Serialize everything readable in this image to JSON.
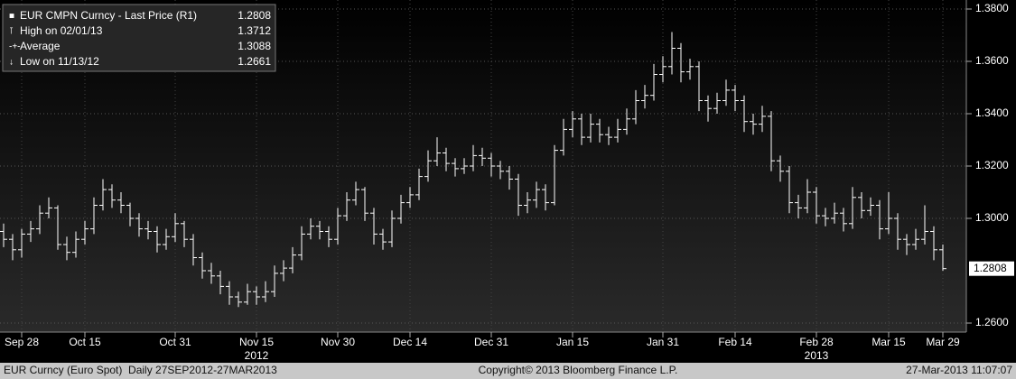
{
  "chart_data": {
    "type": "ohlc",
    "legend": [
      {
        "label": "EUR CMPN Curncy - Last Price (R1)",
        "value": 1.2808
      },
      {
        "label": "High on 02/01/13",
        "value": 1.3712
      },
      {
        "label": "Average",
        "value": 1.3088
      },
      {
        "label": "Low on 11/13/12",
        "value": 1.2661
      }
    ],
    "categories": [
      null,
      null,
      "Sep 28",
      null,
      null,
      null,
      null,
      null,
      null,
      "Oct 15",
      null,
      null,
      null,
      null,
      null,
      null,
      null,
      null,
      null,
      "Oct 31",
      null,
      null,
      null,
      null,
      null,
      null,
      null,
      null,
      "Nov 15",
      null,
      null,
      null,
      null,
      null,
      null,
      null,
      null,
      "Nov 30",
      null,
      null,
      null,
      null,
      null,
      null,
      null,
      "Dec 14",
      null,
      null,
      null,
      null,
      null,
      null,
      null,
      null,
      "Dec 31",
      null,
      null,
      null,
      null,
      null,
      null,
      null,
      null,
      "Jan 15",
      null,
      null,
      null,
      null,
      null,
      null,
      null,
      null,
      null,
      "Jan 31",
      null,
      null,
      null,
      null,
      null,
      null,
      null,
      "Feb 14",
      null,
      null,
      null,
      null,
      null,
      null,
      null,
      null,
      "Feb 28",
      null,
      null,
      null,
      null,
      null,
      null,
      null,
      "Mar 15",
      null,
      null,
      null,
      null,
      null,
      "Mar 29"
    ],
    "year_labels": [
      "2012",
      "2013"
    ],
    "ohlc": [
      [
        1.295,
        1.298,
        1.289,
        1.292
      ],
      [
        1.292,
        1.294,
        1.284,
        1.288
      ],
      [
        1.288,
        1.296,
        1.285,
        1.294
      ],
      [
        1.294,
        1.299,
        1.291,
        1.296
      ],
      [
        1.296,
        1.305,
        1.294,
        1.302
      ],
      [
        1.302,
        1.308,
        1.3,
        1.304
      ],
      [
        1.304,
        1.305,
        1.288,
        1.29
      ],
      [
        1.29,
        1.293,
        1.284,
        1.287
      ],
      [
        1.287,
        1.295,
        1.285,
        1.292
      ],
      [
        1.292,
        1.299,
        1.29,
        1.296
      ],
      [
        1.296,
        1.308,
        1.294,
        1.305
      ],
      [
        1.305,
        1.315,
        1.303,
        1.311
      ],
      [
        1.311,
        1.313,
        1.304,
        1.307
      ],
      [
        1.307,
        1.31,
        1.302,
        1.305
      ],
      [
        1.305,
        1.306,
        1.297,
        1.3
      ],
      [
        1.3,
        1.302,
        1.293,
        1.296
      ],
      [
        1.296,
        1.299,
        1.292,
        1.295
      ],
      [
        1.295,
        1.297,
        1.287,
        1.29
      ],
      [
        1.29,
        1.296,
        1.288,
        1.293
      ],
      [
        1.293,
        1.302,
        1.291,
        1.298
      ],
      [
        1.298,
        1.299,
        1.289,
        1.292
      ],
      [
        1.292,
        1.294,
        1.282,
        1.285
      ],
      [
        1.285,
        1.287,
        1.277,
        1.28
      ],
      [
        1.28,
        1.283,
        1.275,
        1.278
      ],
      [
        1.278,
        1.28,
        1.271,
        1.274
      ],
      [
        1.274,
        1.276,
        1.267,
        1.27
      ],
      [
        1.27,
        1.272,
        1.2661,
        1.268
      ],
      [
        1.268,
        1.275,
        1.267,
        1.272
      ],
      [
        1.272,
        1.274,
        1.267,
        1.27
      ],
      [
        1.27,
        1.276,
        1.268,
        1.272
      ],
      [
        1.272,
        1.282,
        1.27,
        1.279
      ],
      [
        1.279,
        1.284,
        1.276,
        1.281
      ],
      [
        1.281,
        1.289,
        1.279,
        1.286
      ],
      [
        1.286,
        1.297,
        1.284,
        1.294
      ],
      [
        1.294,
        1.3,
        1.292,
        1.297
      ],
      [
        1.297,
        1.299,
        1.292,
        1.295
      ],
      [
        1.295,
        1.297,
        1.289,
        1.292
      ],
      [
        1.292,
        1.304,
        1.29,
        1.301
      ],
      [
        1.301,
        1.31,
        1.299,
        1.307
      ],
      [
        1.307,
        1.314,
        1.305,
        1.311
      ],
      [
        1.311,
        1.312,
        1.299,
        1.302
      ],
      [
        1.302,
        1.304,
        1.29,
        1.294
      ],
      [
        1.294,
        1.296,
        1.288,
        1.291
      ],
      [
        1.291,
        1.303,
        1.289,
        1.3
      ],
      [
        1.3,
        1.309,
        1.298,
        1.306
      ],
      [
        1.306,
        1.312,
        1.304,
        1.309
      ],
      [
        1.309,
        1.319,
        1.307,
        1.316
      ],
      [
        1.316,
        1.326,
        1.314,
        1.322
      ],
      [
        1.322,
        1.331,
        1.32,
        1.325
      ],
      [
        1.325,
        1.327,
        1.318,
        1.321
      ],
      [
        1.321,
        1.323,
        1.316,
        1.319
      ],
      [
        1.319,
        1.323,
        1.317,
        1.32
      ],
      [
        1.32,
        1.328,
        1.318,
        1.324
      ],
      [
        1.324,
        1.327,
        1.32,
        1.323
      ],
      [
        1.323,
        1.325,
        1.316,
        1.32
      ],
      [
        1.32,
        1.322,
        1.315,
        1.318
      ],
      [
        1.318,
        1.32,
        1.311,
        1.315
      ],
      [
        1.315,
        1.317,
        1.301,
        1.305
      ],
      [
        1.305,
        1.31,
        1.302,
        1.307
      ],
      [
        1.307,
        1.314,
        1.304,
        1.311
      ],
      [
        1.311,
        1.313,
        1.303,
        1.306
      ],
      [
        1.306,
        1.328,
        1.305,
        1.326
      ],
      [
        1.326,
        1.338,
        1.324,
        1.334
      ],
      [
        1.334,
        1.341,
        1.331,
        1.338
      ],
      [
        1.338,
        1.34,
        1.328,
        1.331
      ],
      [
        1.331,
        1.34,
        1.329,
        1.336
      ],
      [
        1.336,
        1.338,
        1.329,
        1.332
      ],
      [
        1.332,
        1.335,
        1.328,
        1.331
      ],
      [
        1.331,
        1.338,
        1.329,
        1.334
      ],
      [
        1.334,
        1.342,
        1.332,
        1.338
      ],
      [
        1.338,
        1.349,
        1.336,
        1.345
      ],
      [
        1.345,
        1.351,
        1.342,
        1.347
      ],
      [
        1.347,
        1.359,
        1.345,
        1.355
      ],
      [
        1.355,
        1.362,
        1.352,
        1.358
      ],
      [
        1.358,
        1.3712,
        1.355,
        1.365
      ],
      [
        1.365,
        1.367,
        1.352,
        1.356
      ],
      [
        1.356,
        1.361,
        1.353,
        1.358
      ],
      [
        1.358,
        1.36,
        1.341,
        1.345
      ],
      [
        1.345,
        1.347,
        1.337,
        1.342
      ],
      [
        1.342,
        1.348,
        1.34,
        1.345
      ],
      [
        1.345,
        1.353,
        1.343,
        1.349
      ],
      [
        1.349,
        1.351,
        1.341,
        1.345
      ],
      [
        1.345,
        1.347,
        1.333,
        1.337
      ],
      [
        1.337,
        1.34,
        1.332,
        1.336
      ],
      [
        1.336,
        1.343,
        1.333,
        1.339
      ],
      [
        1.339,
        1.341,
        1.318,
        1.322
      ],
      [
        1.322,
        1.324,
        1.314,
        1.318
      ],
      [
        1.318,
        1.32,
        1.302,
        1.306
      ],
      [
        1.306,
        1.309,
        1.3,
        1.304
      ],
      [
        1.304,
        1.315,
        1.302,
        1.31
      ],
      [
        1.31,
        1.312,
        1.298,
        1.301
      ],
      [
        1.301,
        1.304,
        1.297,
        1.3
      ],
      [
        1.3,
        1.306,
        1.298,
        1.302
      ],
      [
        1.302,
        1.304,
        1.295,
        1.298
      ],
      [
        1.298,
        1.312,
        1.296,
        1.308
      ],
      [
        1.308,
        1.31,
        1.3,
        1.303
      ],
      [
        1.303,
        1.308,
        1.301,
        1.305
      ],
      [
        1.305,
        1.307,
        1.292,
        1.296
      ],
      [
        1.296,
        1.31,
        1.294,
        1.3
      ],
      [
        1.3,
        1.302,
        1.288,
        1.292
      ],
      [
        1.292,
        1.294,
        1.286,
        1.29
      ],
      [
        1.29,
        1.296,
        1.288,
        1.292
      ],
      [
        1.292,
        1.305,
        1.29,
        1.295
      ],
      [
        1.295,
        1.297,
        1.284,
        1.288
      ],
      [
        1.288,
        1.29,
        1.28,
        1.2808
      ]
    ],
    "color": "#ffffff",
    "ylim": [
      1.2565,
      1.3835
    ],
    "yticks": [
      {
        "value": 1.26,
        "label": "1.2600"
      },
      {
        "value": 1.3,
        "label": "1.3000"
      },
      {
        "value": 1.32,
        "label": "1.3200"
      },
      {
        "value": 1.34,
        "label": "1.3400"
      },
      {
        "value": 1.36,
        "label": "1.3600"
      },
      {
        "value": 1.38,
        "label": "1.3800"
      }
    ],
    "grid": true,
    "footer": {
      "left": "EUR Curncy (Euro Spot)  Daily 27SEP2012-27MAR2013",
      "center": "Copyright© 2013 Bloomberg Finance L.P.",
      "right": "27-Mar-2013 11:07:07"
    }
  }
}
